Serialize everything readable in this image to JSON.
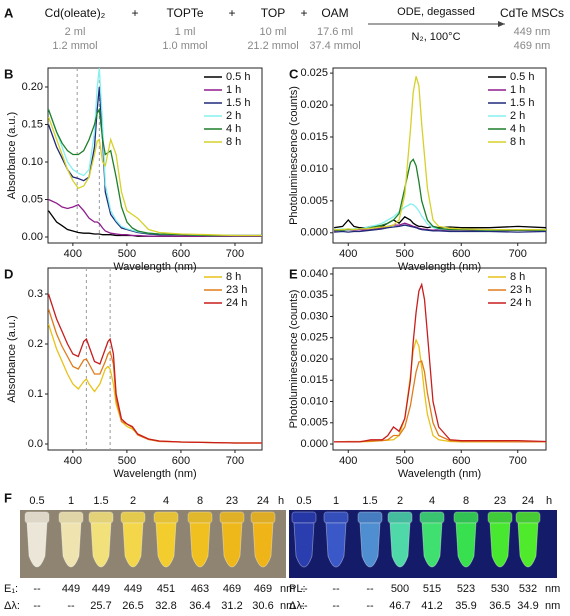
{
  "panel_a": {
    "label": "A",
    "reagents": [
      {
        "name": "Cd(oleate)₂",
        "volume": "2 ml",
        "amount": "1.2 mmol"
      },
      {
        "name": "TOPTe",
        "volume": "1 ml",
        "amount": "1.0 mmol"
      },
      {
        "name": "TOP",
        "volume": "10 ml",
        "amount": "21.2 mmol"
      },
      {
        "name": "OAM",
        "volume": "17.6 ml",
        "amount": "37.4 mmol"
      }
    ],
    "plus": "+",
    "condition_top": "ODE, degassed",
    "condition_bottom": "N₂, 100°C",
    "product": "CdTe MSCs",
    "product_peaks": [
      "449 nm",
      "469 nm"
    ]
  },
  "chart_data": [
    {
      "type": "line",
      "label": "B",
      "xlabel": "Wavelength (nm)",
      "ylabel": "Absorbance (a.u.)",
      "x": [
        355,
        370,
        380,
        390,
        400,
        410,
        420,
        430,
        440,
        445,
        449,
        455,
        460,
        470,
        480,
        490,
        500,
        510,
        520,
        540,
        560,
        600,
        650,
        700,
        750
      ],
      "series": [
        {
          "name": "0.5 h",
          "color": "#000000",
          "values": [
            0.035,
            0.02,
            0.015,
            0.01,
            0.008,
            0.006,
            0.005,
            0.005,
            0.004,
            0.004,
            0.004,
            0.003,
            0.003,
            0.003,
            0.002,
            0.002,
            0.002,
            0.002,
            0.001,
            0.001,
            0.001,
            0.001,
            0.001,
            0.001,
            0.001
          ]
        },
        {
          "name": "1 h",
          "color": "#8e1c8e",
          "values": [
            0.05,
            0.045,
            0.04,
            0.038,
            0.04,
            0.043,
            0.035,
            0.025,
            0.02,
            0.02,
            0.018,
            0.012,
            0.008,
            0.005,
            0.004,
            0.003,
            0.003,
            0.002,
            0.002,
            0.001,
            0.001,
            0.001,
            0.001,
            0.001,
            0.001
          ]
        },
        {
          "name": "1.5 h",
          "color": "#1f2a7a",
          "values": [
            0.15,
            0.12,
            0.105,
            0.09,
            0.08,
            0.078,
            0.075,
            0.08,
            0.12,
            0.17,
            0.2,
            0.13,
            0.06,
            0.03,
            0.02,
            0.012,
            0.01,
            0.008,
            0.006,
            0.004,
            0.003,
            0.003,
            0.002,
            0.002,
            0.002
          ]
        },
        {
          "name": "2 h",
          "color": "#86f0ee",
          "values": [
            0.17,
            0.14,
            0.12,
            0.1,
            0.09,
            0.085,
            0.082,
            0.09,
            0.14,
            0.2,
            0.225,
            0.15,
            0.07,
            0.035,
            0.022,
            0.014,
            0.011,
            0.009,
            0.007,
            0.005,
            0.004,
            0.003,
            0.002,
            0.002,
            0.002
          ]
        },
        {
          "name": "4 h",
          "color": "#1d7f2a",
          "values": [
            0.17,
            0.14,
            0.125,
            0.115,
            0.11,
            0.11,
            0.115,
            0.13,
            0.15,
            0.165,
            0.17,
            0.13,
            0.11,
            0.115,
            0.08,
            0.04,
            0.02,
            0.012,
            0.008,
            0.005,
            0.004,
            0.003,
            0.002,
            0.002,
            0.002
          ]
        },
        {
          "name": "8 h",
          "color": "#d6d12a",
          "values": [
            0.16,
            0.13,
            0.11,
            0.09,
            0.075,
            0.065,
            0.068,
            0.08,
            0.11,
            0.128,
            0.13,
            0.1,
            0.095,
            0.13,
            0.11,
            0.06,
            0.035,
            0.03,
            0.025,
            0.01,
            0.006,
            0.004,
            0.003,
            0.002,
            0.002
          ]
        }
      ],
      "reference_lines": [
        408,
        449
      ],
      "xlim": [
        354,
        750
      ],
      "ylim": [
        -0.008,
        0.2253
      ],
      "xticks": [
        400,
        500,
        600,
        700
      ],
      "yticks": [
        {
          "value": 0,
          "label": "0.00"
        },
        0.05,
        {
          "value": 0.1,
          "label": "0.10"
        },
        0.15,
        {
          "value": 0.2,
          "label": "0.20"
        }
      ],
      "legend": "upper right"
    },
    {
      "type": "line",
      "label": "C",
      "xlabel": "Wavelength (nm)",
      "ylabel": "Photoluminescence (counts)",
      "x": [
        375,
        390,
        400,
        410,
        420,
        430,
        440,
        450,
        460,
        470,
        480,
        490,
        500,
        510,
        515,
        520,
        525,
        530,
        540,
        550,
        560,
        580,
        600,
        650,
        700,
        750
      ],
      "series": [
        {
          "name": "0.5 h",
          "color": "#000000",
          "values": [
            0.0008,
            0.001,
            0.002,
            0.001,
            0.0008,
            0.0008,
            0.001,
            0.0008,
            0.001,
            0.0015,
            0.002,
            0.0015,
            0.0025,
            0.002,
            0.0015,
            0.0012,
            0.001,
            0.001,
            0.0008,
            0.001,
            0.0008,
            0.0009,
            0.0008,
            0.0008,
            0.001,
            0.0008
          ]
        },
        {
          "name": "1 h",
          "color": "#8e1c8e",
          "values": [
            0.0003,
            0.0004,
            0.0005,
            0.0004,
            0.0005,
            0.0004,
            0.0005,
            0.0006,
            0.0008,
            0.001,
            0.0012,
            0.0012,
            0.0015,
            0.0012,
            0.001,
            0.0009,
            0.0007,
            0.0006,
            0.0005,
            0.0004,
            0.0005,
            0.0004,
            0.0004,
            0.0003,
            0.0004,
            0.0003
          ]
        },
        {
          "name": "1.5 h",
          "color": "#1f2a7a",
          "values": [
            0.0001,
            0.0002,
            0.0001,
            0.0002,
            0.0002,
            0.0003,
            0.0004,
            0.0005,
            0.0006,
            0.0008,
            0.0009,
            0.001,
            0.0012,
            0.001,
            0.0009,
            0.0008,
            0.0006,
            0.0005,
            0.0004,
            0.0003,
            0.0003,
            0.0002,
            0.0002,
            0.0002,
            0.0001,
            0.0002
          ]
        },
        {
          "name": "2 h",
          "color": "#86f0ee",
          "values": [
            0.0005,
            0.0006,
            0.0005,
            0.0006,
            0.0006,
            0.0008,
            0.001,
            0.0012,
            0.0015,
            0.002,
            0.0025,
            0.0033,
            0.004,
            0.0045,
            0.0044,
            0.004,
            0.0034,
            0.0026,
            0.0014,
            0.0008,
            0.0006,
            0.0005,
            0.0005,
            0.0004,
            0.0005,
            0.0004
          ]
        },
        {
          "name": "4 h",
          "color": "#1d7f2a",
          "values": [
            0.0004,
            0.0004,
            0.0005,
            0.0005,
            0.0006,
            0.0006,
            0.0008,
            0.001,
            0.0012,
            0.0015,
            0.002,
            0.003,
            0.007,
            0.011,
            0.0115,
            0.0105,
            0.008,
            0.005,
            0.002,
            0.001,
            0.0007,
            0.0005,
            0.0005,
            0.0004,
            0.0004,
            0.0004
          ]
        },
        {
          "name": "8 h",
          "color": "#d6d12a",
          "values": [
            0.0005,
            0.0005,
            0.0006,
            0.0005,
            0.0006,
            0.0006,
            0.0007,
            0.0008,
            0.0009,
            0.001,
            0.0012,
            0.002,
            0.006,
            0.016,
            0.022,
            0.0245,
            0.023,
            0.017,
            0.007,
            0.002,
            0.001,
            0.0007,
            0.0006,
            0.0005,
            0.0005,
            0.0005
          ]
        }
      ],
      "xlim": [
        373,
        750
      ],
      "ylim": [
        -0.0016,
        0.0258
      ],
      "xticks": [
        400,
        500,
        600,
        700
      ],
      "yticks": [
        {
          "value": 0,
          "label": "0.000"
        },
        0.005,
        {
          "value": 0.01,
          "label": "0.010"
        },
        0.015,
        {
          "value": 0.02,
          "label": "0.020"
        },
        0.025
      ],
      "legend": "upper right"
    },
    {
      "type": "line",
      "label": "D",
      "xlabel": "Wavelength (nm)",
      "ylabel": "Absorbance (a.u.)",
      "x": [
        355,
        370,
        380,
        390,
        400,
        410,
        420,
        425,
        430,
        440,
        450,
        460,
        465,
        469,
        475,
        480,
        490,
        500,
        510,
        520,
        540,
        560,
        600,
        650,
        700,
        750
      ],
      "series": [
        {
          "name": "8 h",
          "color": "#e8c21a",
          "values": [
            0.24,
            0.19,
            0.165,
            0.14,
            0.12,
            0.11,
            0.125,
            0.13,
            0.12,
            0.105,
            0.12,
            0.15,
            0.155,
            0.15,
            0.12,
            0.08,
            0.045,
            0.035,
            0.03,
            0.02,
            0.01,
            0.006,
            0.004,
            0.003,
            0.002,
            0.002
          ]
        },
        {
          "name": "23 h",
          "color": "#e07b1c",
          "values": [
            0.27,
            0.22,
            0.195,
            0.175,
            0.155,
            0.15,
            0.168,
            0.17,
            0.16,
            0.14,
            0.14,
            0.165,
            0.18,
            0.185,
            0.16,
            0.09,
            0.045,
            0.04,
            0.033,
            0.018,
            0.009,
            0.005,
            0.004,
            0.003,
            0.002,
            0.002
          ]
        },
        {
          "name": "24 h",
          "color": "#c81e1e",
          "values": [
            0.3,
            0.25,
            0.225,
            0.2,
            0.18,
            0.175,
            0.205,
            0.21,
            0.195,
            0.165,
            0.16,
            0.19,
            0.205,
            0.21,
            0.18,
            0.1,
            0.05,
            0.04,
            0.035,
            0.02,
            0.01,
            0.006,
            0.004,
            0.003,
            0.002,
            0.002
          ]
        }
      ],
      "reference_lines": [
        425,
        469
      ],
      "xlim": [
        354,
        750
      ],
      "ylim": [
        -0.012,
        0.352
      ],
      "xticks": [
        400,
        500,
        600,
        700
      ],
      "yticks": [
        {
          "value": 0,
          "label": "0.0"
        },
        0.1,
        0.2,
        0.3
      ],
      "legend": "upper right"
    },
    {
      "type": "line",
      "label": "E",
      "xlabel": "Wavelength (nm)",
      "ylabel": "Photoluminescence (counts)",
      "x": [
        375,
        400,
        420,
        440,
        460,
        470,
        480,
        490,
        500,
        510,
        515,
        520,
        525,
        530,
        535,
        540,
        550,
        560,
        580,
        600,
        650,
        700,
        750
      ],
      "series": [
        {
          "name": "8 h",
          "color": "#e8c21a",
          "values": [
            0.0005,
            0.0005,
            0.0005,
            0.0006,
            0.0008,
            0.0009,
            0.001,
            0.002,
            0.006,
            0.016,
            0.022,
            0.0245,
            0.023,
            0.018,
            0.012,
            0.007,
            0.002,
            0.001,
            0.0006,
            0.0005,
            0.0005,
            0.0005,
            0.0005
          ]
        },
        {
          "name": "23 h",
          "color": "#e07b1c",
          "values": [
            0.0005,
            0.0006,
            0.0006,
            0.0007,
            0.0008,
            0.001,
            0.002,
            0.002,
            0.004,
            0.009,
            0.013,
            0.017,
            0.0193,
            0.0195,
            0.017,
            0.012,
            0.005,
            0.002,
            0.0008,
            0.0006,
            0.0006,
            0.0005,
            0.0005
          ]
        },
        {
          "name": "24 h",
          "color": "#c81e1e",
          "values": [
            0.0005,
            0.0005,
            0.0005,
            0.001,
            0.001,
            0.002,
            0.004,
            0.003,
            0.006,
            0.015,
            0.024,
            0.031,
            0.036,
            0.0375,
            0.034,
            0.026,
            0.01,
            0.004,
            0.001,
            0.0008,
            0.0008,
            0.0008,
            0.0006
          ]
        }
      ],
      "xlim": [
        373,
        750
      ],
      "ylim": [
        -0.0014,
        0.0414
      ],
      "xticks": [
        400,
        500,
        600,
        700
      ],
      "yticks": [
        {
          "value": 0,
          "label": "0.000"
        },
        0.005,
        {
          "value": 0.01,
          "label": "0.010"
        },
        0.015,
        {
          "value": 0.02,
          "label": "0.020"
        },
        0.025,
        {
          "value": 0.03,
          "label": "0.030"
        },
        0.035,
        {
          "value": 0.04,
          "label": "0.040"
        }
      ],
      "legend": "upper right"
    }
  ],
  "panel_f": {
    "label": "F",
    "photos": [
      {
        "times": [
          "0.5",
          "1",
          "1.5",
          "2",
          "4",
          "8",
          "23",
          "24"
        ],
        "unit": "h",
        "background": "#8e8471",
        "tube_colors": [
          "#ece6d8",
          "#efe4b0",
          "#f2e07a",
          "#f3d64a",
          "#f3cc2e",
          "#f0c020",
          "#efb81a",
          "#eeb418"
        ],
        "rows": [
          {
            "label": "E₁:",
            "cells": [
              "--",
              "449",
              "449",
              "449",
              "451",
              "463",
              "469",
              "469"
            ],
            "unit": "nm"
          },
          {
            "label": "Δλ:",
            "cells": [
              "--",
              "--",
              "25.7",
              "26.5",
              "32.8",
              "36.4",
              "31.2",
              "30.6"
            ],
            "unit": "nm"
          }
        ]
      },
      {
        "times": [
          "0.5",
          "1",
          "1.5",
          "2",
          "4",
          "8",
          "23",
          "24"
        ],
        "unit": "h",
        "background": "#141c6a",
        "tube_colors": [
          "#2a3eb0",
          "#3a58c8",
          "#4f8ed0",
          "#4fd8a8",
          "#40e070",
          "#38e050",
          "#48e830",
          "#50ea2c"
        ],
        "rows": [
          {
            "label": "PL:",
            "cells": [
              "--",
              "--",
              "--",
              "500",
              "515",
              "523",
              "530",
              "532"
            ],
            "unit": "nm"
          },
          {
            "label": "Δλ:",
            "cells": [
              "--",
              "--",
              "--",
              "46.7",
              "41.2",
              "35.9",
              "36.5",
              "34.9"
            ],
            "unit": "nm"
          }
        ]
      }
    ]
  }
}
